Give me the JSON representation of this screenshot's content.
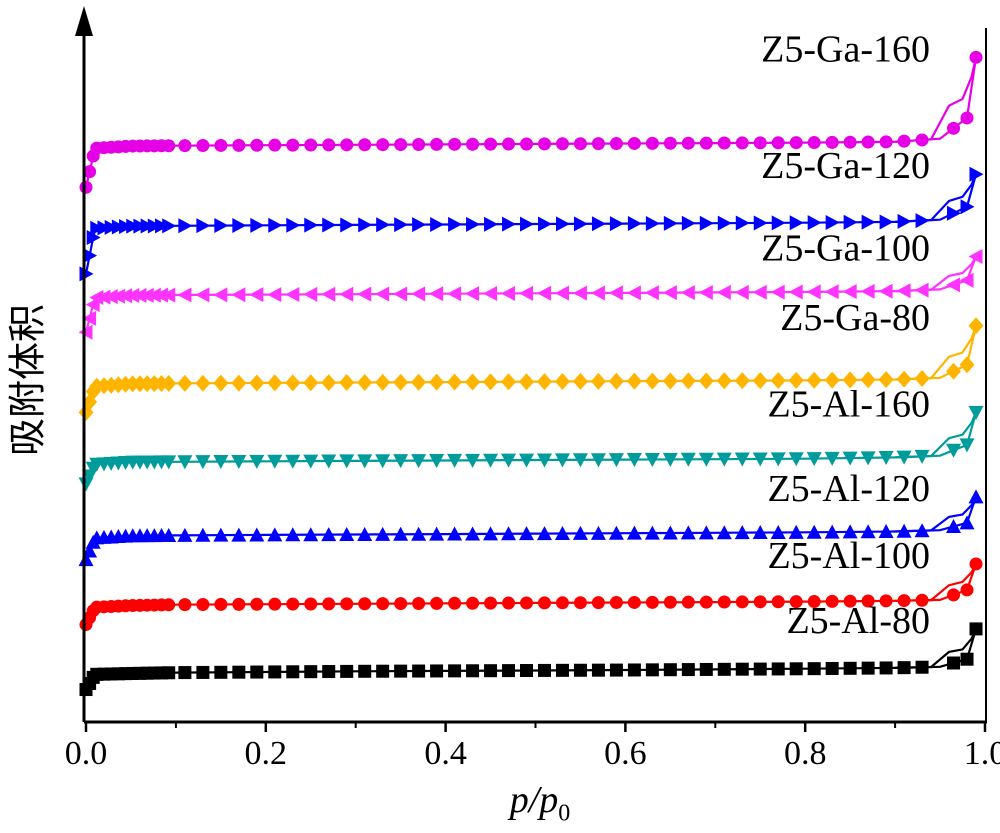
{
  "chart_data": {
    "type": "line",
    "ylabel": "吸附体积",
    "xlabel": {
      "main": "p/p",
      "sub": "0"
    },
    "xlim": [
      0.0,
      1.0
    ],
    "xticks": [
      "0.0",
      "0.2",
      "0.4",
      "0.6",
      "0.8",
      "1.0"
    ],
    "y_axis_values_shown": false,
    "series": [
      {
        "name": "Z5-Al-80",
        "color": "#000000",
        "marker": "square",
        "x": [
          0.0,
          0.01,
          0.05,
          0.1,
          0.2,
          0.3,
          0.4,
          0.5,
          0.6,
          0.7,
          0.8,
          0.9,
          0.95,
          0.98,
          0.99
        ],
        "y": [
          0.0,
          0.7,
          0.74,
          0.78,
          0.81,
          0.84,
          0.86,
          0.88,
          0.9,
          0.93,
          0.96,
          1.0,
          1.05,
          1.4,
          2.8
        ]
      },
      {
        "name": "Z5-Al-100",
        "color": "#ff0000",
        "marker": "circle",
        "x": [
          0.0,
          0.01,
          0.05,
          0.1,
          0.2,
          0.3,
          0.4,
          0.5,
          0.6,
          0.7,
          0.8,
          0.9,
          0.95,
          0.98,
          0.99
        ],
        "y": [
          3.0,
          3.8,
          3.88,
          3.92,
          3.94,
          3.96,
          3.98,
          4.0,
          4.02,
          4.04,
          4.06,
          4.1,
          4.14,
          4.6,
          5.8
        ]
      },
      {
        "name": "Z5-Al-120",
        "color": "#0000ff",
        "marker": "triangle-up",
        "x": [
          0.0,
          0.01,
          0.05,
          0.1,
          0.2,
          0.3,
          0.4,
          0.5,
          0.6,
          0.7,
          0.8,
          0.9,
          0.95,
          0.98,
          0.99
        ],
        "y": [
          6.0,
          7.0,
          7.1,
          7.12,
          7.14,
          7.16,
          7.18,
          7.2,
          7.22,
          7.24,
          7.26,
          7.3,
          7.36,
          7.7,
          8.9
        ]
      },
      {
        "name": "Z5-Al-160",
        "color": "#009b9b",
        "marker": "triangle-down",
        "x": [
          0.0,
          0.01,
          0.05,
          0.1,
          0.2,
          0.3,
          0.4,
          0.5,
          0.6,
          0.7,
          0.8,
          0.9,
          0.95,
          0.98,
          0.99
        ],
        "y": [
          9.5,
          10.4,
          10.5,
          10.52,
          10.54,
          10.56,
          10.58,
          10.6,
          10.62,
          10.64,
          10.66,
          10.72,
          10.8,
          11.3,
          12.8
        ]
      },
      {
        "name": "Z5-Ga-80",
        "color": "#ffb400",
        "marker": "diamond",
        "x": [
          0.0,
          0.01,
          0.05,
          0.1,
          0.2,
          0.3,
          0.4,
          0.5,
          0.6,
          0.7,
          0.8,
          0.9,
          0.95,
          0.98,
          0.99
        ],
        "y": [
          12.8,
          14.0,
          14.12,
          14.14,
          14.16,
          14.18,
          14.2,
          14.22,
          14.24,
          14.26,
          14.28,
          14.32,
          14.4,
          15.0,
          16.8
        ]
      },
      {
        "name": "Z5-Ga-100",
        "color": "#ff33ff",
        "marker": "triangle-left",
        "x": [
          0.0,
          0.01,
          0.05,
          0.1,
          0.2,
          0.3,
          0.4,
          0.5,
          0.6,
          0.7,
          0.8,
          0.9,
          0.95,
          0.98,
          0.99
        ],
        "y": [
          16.5,
          18.1,
          18.2,
          18.22,
          18.24,
          18.26,
          18.28,
          18.3,
          18.32,
          18.34,
          18.36,
          18.4,
          18.48,
          18.9,
          20.0
        ]
      },
      {
        "name": "Z5-Ga-120",
        "color": "#0000ff",
        "marker": "triangle-right",
        "x": [
          0.0,
          0.01,
          0.05,
          0.1,
          0.2,
          0.3,
          0.4,
          0.5,
          0.6,
          0.7,
          0.8,
          0.9,
          0.95,
          0.98,
          0.99
        ],
        "y": [
          19.2,
          21.3,
          21.4,
          21.42,
          21.44,
          21.46,
          21.48,
          21.5,
          21.52,
          21.54,
          21.56,
          21.6,
          21.7,
          22.3,
          23.8
        ]
      },
      {
        "name": "Z5-Ga-160",
        "color": "#e600e6",
        "marker": "circle",
        "x": [
          0.0,
          0.01,
          0.05,
          0.1,
          0.2,
          0.3,
          0.4,
          0.5,
          0.6,
          0.7,
          0.8,
          0.9,
          0.95,
          0.98,
          0.99
        ],
        "y": [
          23.2,
          25.0,
          25.1,
          25.12,
          25.14,
          25.16,
          25.18,
          25.2,
          25.22,
          25.24,
          25.26,
          25.3,
          25.44,
          26.4,
          29.2
        ]
      }
    ]
  }
}
